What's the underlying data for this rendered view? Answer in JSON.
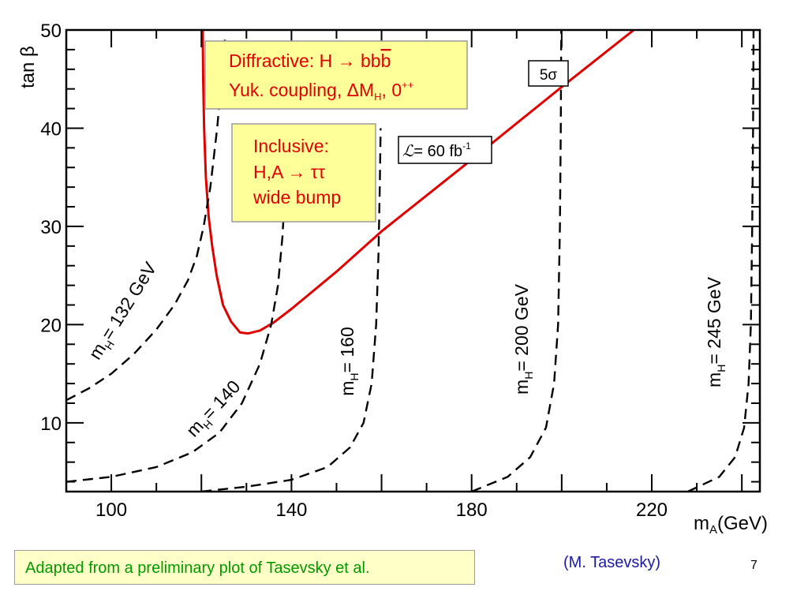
{
  "chart_data": {
    "type": "line",
    "xlabel": "m",
    "xlabel_sub": "A",
    "xlabel_unit": "(GeV)",
    "ylabel": "tan β",
    "xlim": [
      90,
      244
    ],
    "ylim": [
      3,
      50
    ],
    "xticks": [
      {
        "value": 100,
        "label": "100"
      },
      {
        "value": 140,
        "label": "140"
      },
      {
        "value": 180,
        "label": "180"
      },
      {
        "value": 220,
        "label": "220"
      }
    ],
    "yticks": [
      {
        "value": 10,
        "label": "10"
      },
      {
        "value": 20,
        "label": "20"
      },
      {
        "value": 30,
        "label": "30"
      },
      {
        "value": 40,
        "label": "40"
      },
      {
        "value": 50,
        "label": "50"
      }
    ],
    "grid": false,
    "series": [
      {
        "color": "#e00000",
        "style": "solid",
        "label_box": "5σ",
        "x": [
          120.3,
          120.4,
          120.6,
          121.0,
          121.6,
          122.4,
          123.4,
          124.8,
          126.6,
          128.6,
          130.4,
          133.0,
          136.0,
          140.0,
          150.0,
          160.0,
          180.0,
          200.0,
          216.0
        ],
        "y": [
          50,
          45,
          40,
          35,
          31,
          28,
          25,
          22,
          20.3,
          19.2,
          19.1,
          19.4,
          20.2,
          21.6,
          25.4,
          29.5,
          36.8,
          44.2,
          50
        ]
      },
      {
        "color": "#000000",
        "style": "dashed",
        "label": "m",
        "label_sub": "H",
        "label_rest": "= 132 GeV",
        "x": [
          90,
          95,
          100,
          105,
          110,
          114,
          117,
          119,
          120.5,
          122,
          123.5,
          124.5,
          125.2
        ],
        "y": [
          12.3,
          13.5,
          15,
          17,
          19.5,
          22,
          24.5,
          27,
          30,
          34,
          40,
          45,
          49
        ]
      },
      {
        "color": "#000000",
        "style": "dashed",
        "label": "m",
        "label_sub": "H",
        "label_rest": "= 140",
        "x": [
          90,
          100,
          110,
          118,
          124,
          129,
          133,
          135.5,
          137,
          138,
          138.6,
          139.1
        ],
        "y": [
          4.0,
          4.5,
          5.5,
          7.0,
          9.0,
          12.0,
          16.0,
          20.0,
          24.0,
          29.0,
          34.0,
          40.0
        ]
      },
      {
        "color": "#000000",
        "style": "dashed",
        "label": "m",
        "label_sub": "H",
        "label_rest": "= 160",
        "x": [
          120,
          130,
          140,
          148,
          153,
          156,
          157.8,
          158.8,
          159.3,
          159.6,
          159.8
        ],
        "y": [
          3.0,
          3.5,
          4.2,
          5.5,
          7.5,
          10,
          14,
          20,
          27,
          34,
          40
        ]
      },
      {
        "color": "#000000",
        "style": "dashed",
        "label": "m",
        "label_sub": "H",
        "label_rest": "= 200 GeV",
        "x": [
          180,
          188,
          193,
          196.5,
          198.3,
          199.2,
          199.6,
          199.8,
          199.9
        ],
        "y": [
          3.0,
          4.5,
          6.5,
          9.5,
          14,
          20,
          30,
          40,
          50
        ]
      },
      {
        "color": "#000000",
        "style": "dashed",
        "label": "m",
        "label_sub": "H",
        "label_rest": "= 245 GeV",
        "x": [
          228,
          235,
          238.5,
          240.5,
          241.5,
          242.0,
          242.3,
          242.5,
          242.6
        ],
        "y": [
          3.0,
          4.5,
          6.5,
          9.5,
          14,
          20,
          30,
          40,
          50
        ]
      }
    ],
    "annotations": {
      "diffractive": {
        "line1_a": "Diffractive:   H ",
        "arrow": "→",
        "line1_b": " bb",
        "line1_bbar": "b",
        "line2_a": "Yuk. coupling, ",
        "delta": "Δ",
        "line2_m": "M",
        "line2_sub": "H",
        "line2_b": ", 0",
        "line2_sup": "++"
      },
      "inclusive": {
        "line1": "Inclusive:",
        "line2_a": "H,A ",
        "arrow": "→",
        "line2_b": " ττ",
        "line3": "wide bump"
      },
      "luminosity": {
        "symbol": "ℒ",
        "text": "= 60 fb",
        "sup": "-1"
      }
    }
  },
  "footer": {
    "note": "Adapted from a preliminary plot of Tasevsky et al.",
    "author": "(M. Tasevsky)",
    "page_number": "7"
  }
}
